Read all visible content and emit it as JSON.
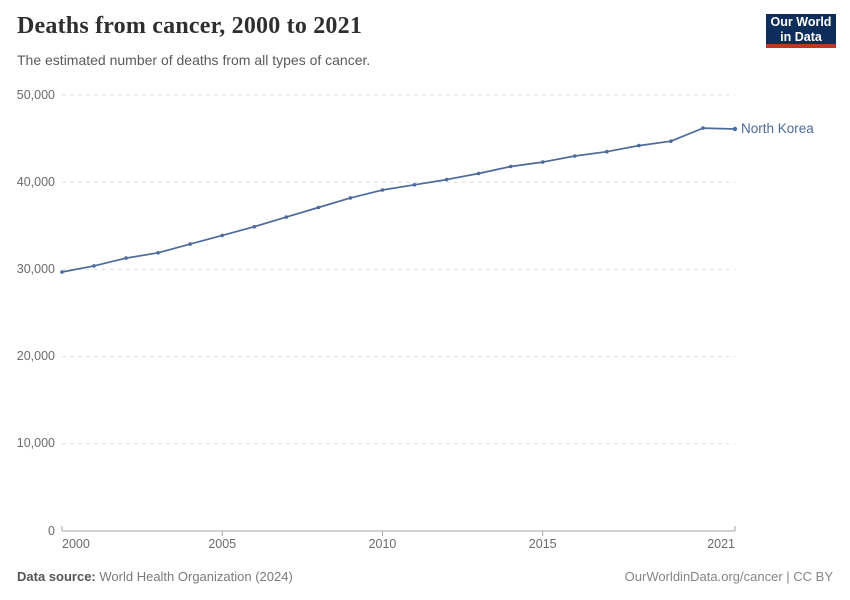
{
  "header": {
    "title": "Deaths from cancer, 2000 to 2021",
    "subtitle": "The estimated number of deaths from all types of cancer.",
    "logo": {
      "line1": "Our World",
      "line2": "in Data"
    }
  },
  "chart_data": {
    "type": "line",
    "title": "Deaths from cancer, 2000 to 2021",
    "subtitle": "The estimated number of deaths from all types of cancer.",
    "xlabel": "",
    "ylabel": "",
    "x": [
      2000,
      2001,
      2002,
      2003,
      2004,
      2005,
      2006,
      2007,
      2008,
      2009,
      2010,
      2011,
      2012,
      2013,
      2014,
      2015,
      2016,
      2017,
      2018,
      2019,
      2020,
      2021
    ],
    "series": [
      {
        "name": "North Korea",
        "color": "#4C6A9C",
        "values": [
          29700,
          30400,
          31300,
          31900,
          32900,
          33900,
          34900,
          36000,
          37100,
          38200,
          39100,
          39700,
          40300,
          41000,
          41800,
          42300,
          43000,
          43500,
          44200,
          44700,
          46200,
          46100
        ]
      }
    ],
    "y_axis": {
      "min": 0,
      "max": 50000,
      "tick_values": [
        0,
        10000,
        20000,
        30000,
        40000,
        50000
      ],
      "tick_labels": [
        "0",
        "10,000",
        "20,000",
        "30,000",
        "40,000",
        "50,000"
      ]
    },
    "x_axis": {
      "tick_values": [
        2000,
        2005,
        2010,
        2015,
        2021
      ],
      "tick_labels": [
        "2000",
        "2005",
        "2010",
        "2015",
        "2021"
      ]
    },
    "grid": "horizontal-dashed",
    "legend_position": "end-of-line"
  },
  "footer": {
    "source_label": "Data source:",
    "source_value": "World Health Organization (2024)",
    "attribution": "OurWorldinData.org/cancer | CC BY"
  },
  "colors": {
    "line": "#4C6A9C",
    "grid": "#dcdcdc",
    "axis": "#a6a6a6",
    "logo_bg": "#0d2e5a",
    "logo_accent": "#c0362c"
  }
}
